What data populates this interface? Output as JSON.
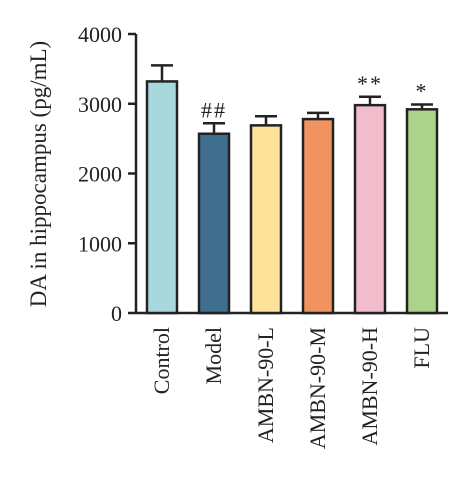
{
  "chart_data": {
    "type": "bar",
    "title": "",
    "xlabel": "",
    "ylabel": "DA in hippocampus (pg/mL)",
    "ylim": [
      0,
      4000
    ],
    "yticks": [
      0,
      1000,
      2000,
      3000,
      4000
    ],
    "grid": false,
    "categories": [
      "Control",
      "Model",
      "AMBN-90-L",
      "AMBN-90-M",
      "AMBN-90-H",
      "FLU"
    ],
    "values": [
      3320,
      2570,
      2690,
      2780,
      2980,
      2920
    ],
    "errors": [
      230,
      150,
      130,
      90,
      120,
      70
    ],
    "annotations": [
      "",
      "##",
      "",
      "",
      "**",
      "*"
    ],
    "colors": [
      "#a9d8dc",
      "#3f6e8e",
      "#fde29a",
      "#f0935e",
      "#f1bccc",
      "#abd38a"
    ]
  }
}
